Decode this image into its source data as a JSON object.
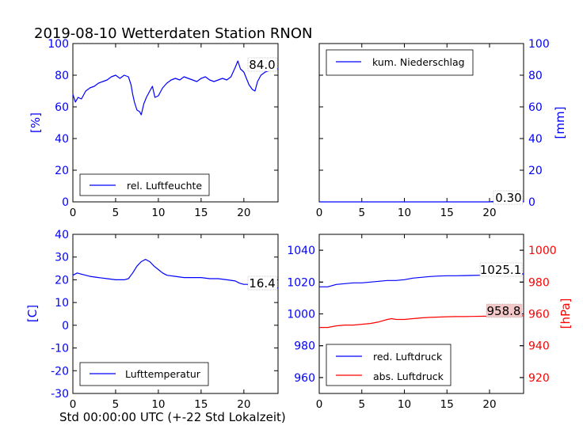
{
  "title": "2019-08-10 Wetterdaten Station RNON",
  "xlabel": "Std 00:00:00 UTC (+-22 Std Lokalzeit)",
  "colors": {
    "blue": "#0000ff",
    "red": "#ff0000",
    "black": "#000000"
  },
  "chart_data": [
    {
      "id": "humidity",
      "type": "line",
      "ylabel": "[%]",
      "xlim": [
        0,
        24
      ],
      "ylim": [
        0,
        100
      ],
      "xticks": [
        "0",
        "5",
        "10",
        "15",
        "20"
      ],
      "yticks": [
        "0",
        "20",
        "40",
        "60",
        "80",
        "100"
      ],
      "legend": "rel. Luftfeuchte",
      "legend_position": "lower-left",
      "last_value_label": "84.0",
      "series": [
        {
          "name": "rel. Luftfeuchte",
          "color": "#0000ff",
          "x": [
            0,
            0.3,
            0.6,
            1,
            1.5,
            2,
            2.5,
            3,
            3.5,
            4,
            4.5,
            5,
            5.5,
            6,
            6.5,
            6.8,
            7,
            7.2,
            7.5,
            7.8,
            8,
            8.3,
            8.6,
            9,
            9.3,
            9.6,
            10,
            10.5,
            11,
            11.5,
            12,
            12.5,
            13,
            13.5,
            14,
            14.5,
            15,
            15.5,
            16,
            16.5,
            17,
            17.5,
            18,
            18.5,
            19,
            19.3,
            19.6,
            20,
            20.3,
            20.6,
            21,
            21.3,
            21.6,
            22,
            22.5,
            23,
            23.5,
            24
          ],
          "y": [
            68,
            63,
            66,
            65,
            70,
            72,
            73,
            75,
            76,
            77,
            79,
            80,
            78,
            80,
            79,
            74,
            68,
            63,
            58,
            57,
            55,
            62,
            66,
            70,
            73,
            66,
            67,
            72,
            75,
            77,
            78,
            77,
            79,
            78,
            77,
            76,
            78,
            79,
            77,
            76,
            77,
            78,
            77,
            79,
            85,
            89,
            84,
            82,
            78,
            74,
            71,
            70,
            76,
            80,
            82,
            83,
            84,
            84
          ]
        }
      ]
    },
    {
      "id": "precipitation",
      "type": "line",
      "ylabel": "[mm]",
      "xlim": [
        0,
        24
      ],
      "ylim": [
        0,
        100
      ],
      "xticks": [
        "0",
        "5",
        "10",
        "15",
        "20"
      ],
      "yticks": [
        "0",
        "20",
        "40",
        "60",
        "80",
        "100"
      ],
      "legend": "kum. Niederschlag",
      "legend_position": "upper-left",
      "last_value_label": "0.30",
      "series": [
        {
          "name": "kum. Niederschlag",
          "color": "#0000ff",
          "x": [
            0,
            5,
            10,
            15,
            20,
            20.5,
            24
          ],
          "y": [
            0,
            0,
            0,
            0,
            0,
            0.3,
            0.3
          ]
        }
      ]
    },
    {
      "id": "temperature",
      "type": "line",
      "ylabel": "[C]",
      "xlim": [
        0,
        24
      ],
      "ylim": [
        -30,
        40
      ],
      "xticks": [
        "0",
        "5",
        "10",
        "15",
        "20"
      ],
      "yticks": [
        "-30",
        "-20",
        "-10",
        "0",
        "10",
        "20",
        "30",
        "40"
      ],
      "legend": "Lufttemperatur",
      "legend_position": "lower-left",
      "last_value_label": "16.4",
      "series": [
        {
          "name": "Lufttemperatur",
          "color": "#0000ff",
          "x": [
            0,
            0.5,
            1,
            1.5,
            2,
            3,
            4,
            5,
            6,
            6.5,
            7,
            7.5,
            8,
            8.5,
            9,
            9.5,
            10,
            10.5,
            11,
            12,
            13,
            14,
            15,
            16,
            17,
            18,
            19,
            19.5,
            20,
            21,
            22,
            23,
            24
          ],
          "y": [
            22,
            23,
            22.5,
            22,
            21.5,
            21,
            20.5,
            20,
            20,
            20.5,
            23,
            26,
            28,
            29,
            28,
            26,
            24.5,
            23,
            22,
            21.5,
            21,
            21,
            21,
            20.5,
            20.5,
            20,
            19.5,
            18.5,
            18,
            18,
            17.5,
            17,
            16.4
          ]
        }
      ]
    },
    {
      "id": "pressure",
      "type": "line",
      "ylabel": "[hPa]",
      "xlim": [
        0,
        24
      ],
      "ylim_left": [
        950,
        1050
      ],
      "ylim_right": [
        910,
        1010
      ],
      "xticks": [
        "0",
        "5",
        "10",
        "15",
        "20"
      ],
      "yticks_left": [
        "960",
        "980",
        "1000",
        "1020",
        "1040"
      ],
      "yticks_right": [
        "920",
        "940",
        "960",
        "980",
        "1000"
      ],
      "legend_position": "lower-left",
      "legend_items": [
        "red. Luftdruck",
        "abs. Luftdruck"
      ],
      "last_value_labels": [
        "1025.1",
        "958.8"
      ],
      "series": [
        {
          "name": "red. Luftdruck",
          "color": "#0000ff",
          "axis": "left",
          "x": [
            0,
            1,
            2,
            3,
            4,
            5,
            6,
            7,
            8,
            9,
            10,
            11,
            12,
            13,
            14,
            15,
            16,
            17,
            18,
            19,
            20,
            21,
            22,
            23,
            24
          ],
          "y": [
            1017,
            1017,
            1018.5,
            1019,
            1019.5,
            1019.5,
            1020,
            1020.5,
            1021,
            1021,
            1021.5,
            1022.5,
            1023,
            1023.5,
            1023.8,
            1024,
            1024,
            1024.1,
            1024.2,
            1024.3,
            1024.5,
            1024.7,
            1024.8,
            1025,
            1025.1
          ]
        },
        {
          "name": "abs. Luftdruck",
          "color": "#ff0000",
          "axis": "right",
          "x": [
            0,
            1,
            2,
            3,
            4,
            5,
            6,
            7,
            8,
            8.5,
            9,
            10,
            11,
            12,
            13,
            14,
            15,
            16,
            17,
            18,
            19,
            20,
            21,
            22,
            23,
            24
          ],
          "y": [
            951.5,
            951.5,
            952.5,
            953,
            953,
            953.5,
            954,
            955,
            956.5,
            957,
            956.5,
            956.5,
            957,
            957.5,
            957.8,
            958,
            958.2,
            958.3,
            958.3,
            958.4,
            958.5,
            958.5,
            958.6,
            958.7,
            958.7,
            958.8
          ]
        }
      ]
    }
  ]
}
